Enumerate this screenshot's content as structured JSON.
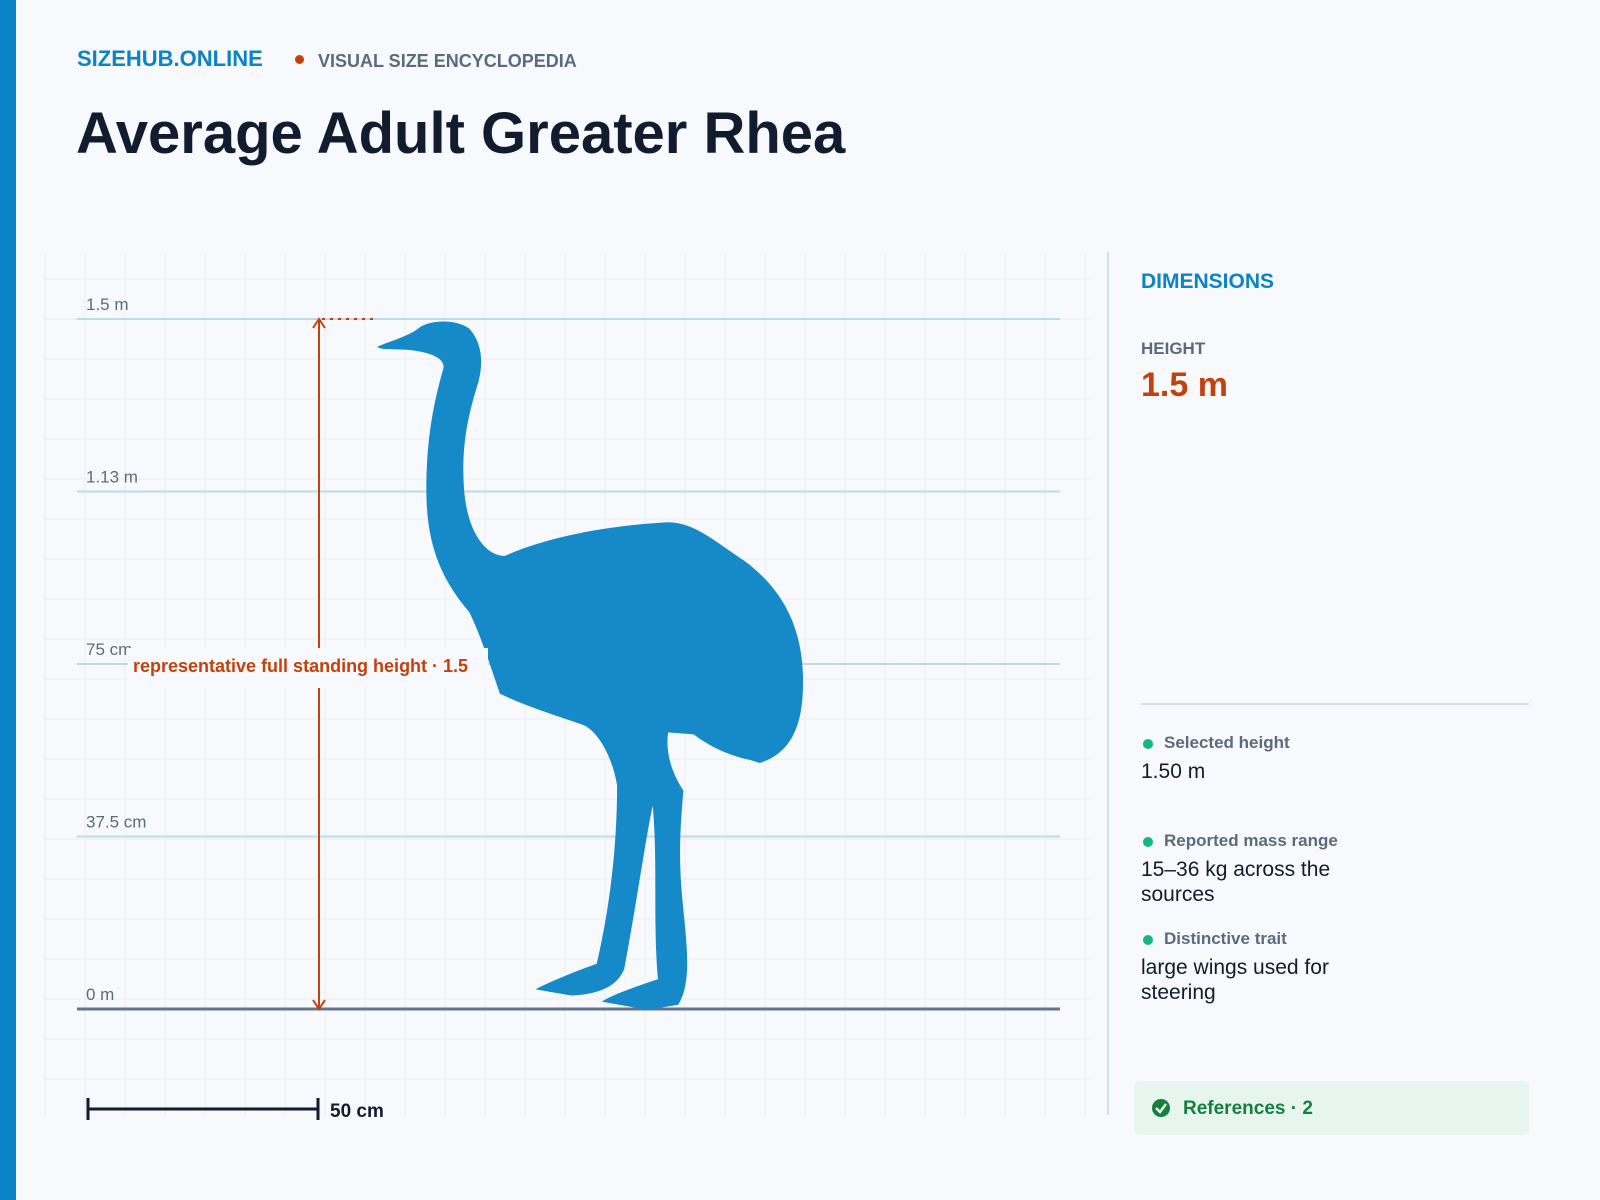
{
  "header": {
    "brand": "SIZEHUB.ONLINE",
    "tagline": "VISUAL SIZE ENCYCLOPEDIA",
    "title": "Average Adult Greater Rhea"
  },
  "figure": {
    "scale_labels": [
      "1.5 m",
      "1.13 m",
      "75 cm",
      "37.5 cm",
      "0 m"
    ],
    "annotation": "representative full standing height · 1.5",
    "scale_bar": "50 cm"
  },
  "sidebar": {
    "heading": "DIMENSIONS",
    "height_label": "HEIGHT",
    "height_value": "1.5 m",
    "facts": [
      {
        "label": "Selected height",
        "value": "1.50 m"
      },
      {
        "label": "Reported mass range",
        "value": "15–36 kg across the sources"
      },
      {
        "label": "Distinctive trait",
        "value": "large wings used for steering"
      }
    ],
    "references": "References · 2"
  }
}
